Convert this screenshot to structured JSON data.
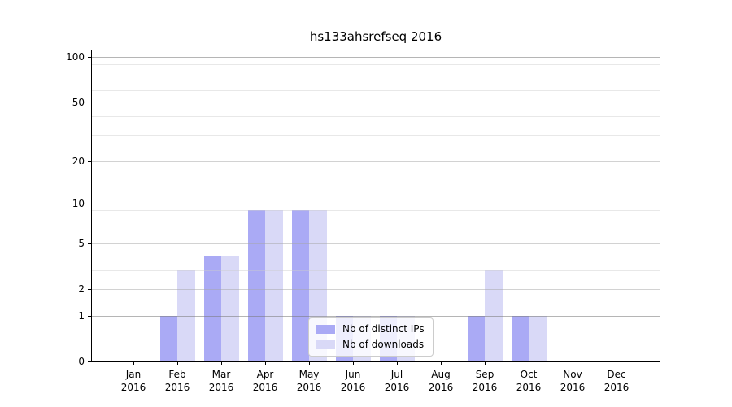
{
  "title": "hs133ahsrefseq 2016",
  "chart_data": {
    "type": "bar",
    "scale": "log1p",
    "title": "hs133ahsrefseq 2016",
    "categories": [
      "Jan",
      "Feb",
      "Mar",
      "Apr",
      "May",
      "Jun",
      "Jul",
      "Aug",
      "Sep",
      "Oct",
      "Nov",
      "Dec"
    ],
    "category_year": "2016",
    "series": [
      {
        "name": "Nb of distinct IPs",
        "color": "#aaaaf5",
        "values": [
          0,
          1,
          4,
          9,
          9,
          1,
          1,
          0,
          1,
          1,
          0,
          0
        ]
      },
      {
        "name": "Nb of downloads",
        "color": "#d9d9f7",
        "values": [
          0,
          3,
          4,
          9,
          9,
          1,
          1,
          0,
          3,
          1,
          0,
          0
        ]
      }
    ],
    "y_axis": {
      "tick_labels": [
        "0",
        "1",
        "2",
        "5",
        "10",
        "20",
        "50",
        "100"
      ],
      "ticks": [
        0,
        1,
        2,
        5,
        10,
        20,
        50,
        100
      ],
      "emphasis_ticks": [
        1,
        10,
        100
      ],
      "minor_ticks": [
        3,
        4,
        6,
        7,
        8,
        9,
        30,
        40,
        60,
        70,
        80,
        90
      ],
      "max": 111,
      "grid": true
    },
    "x_axis": {
      "label_lines": 2
    },
    "legend_position": "bottom-center"
  }
}
